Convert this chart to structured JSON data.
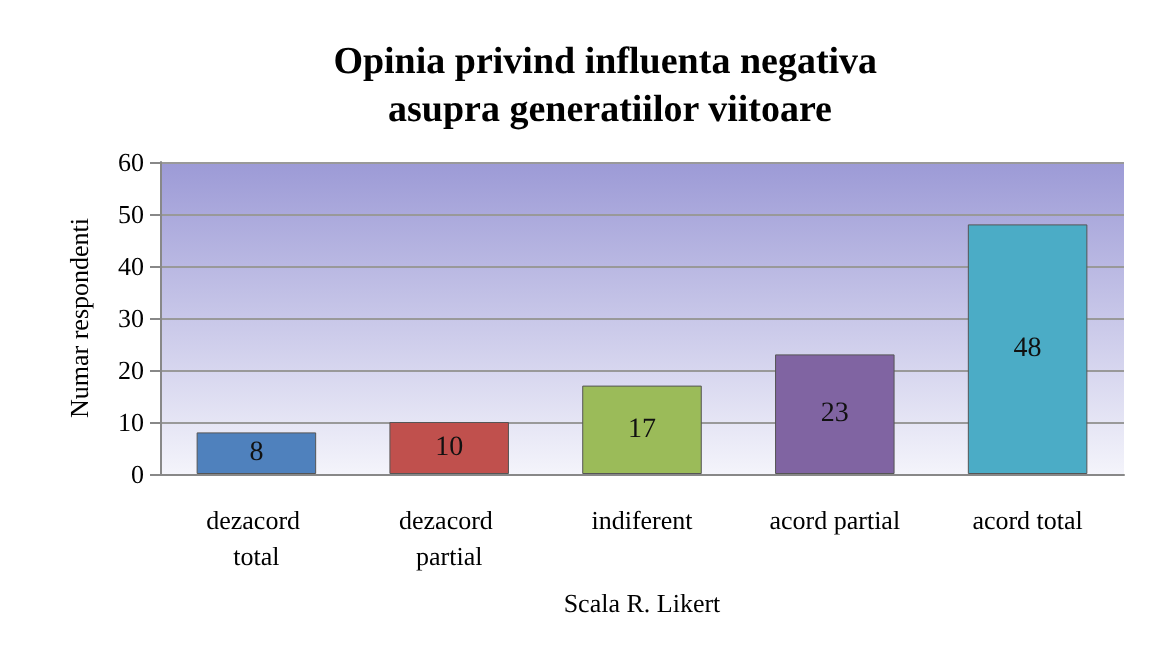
{
  "chart_data": {
    "type": "bar",
    "title": "Opinia privind influenta negativa asupra generatiilor viitoare",
    "xlabel": "Scala R. Likert",
    "ylabel": "Numar respondenti",
    "categories": [
      "dezacord total",
      "dezacord partial",
      "indiferent",
      "acord partial",
      "acord total"
    ],
    "values": [
      8,
      10,
      17,
      23,
      48
    ],
    "colors": [
      "#4f81bd",
      "#c0504d",
      "#9bbb59",
      "#8064a2",
      "#4bacc6"
    ],
    "ylim": [
      0,
      60
    ],
    "yticks": [
      0,
      10,
      20,
      30,
      40,
      50,
      60
    ],
    "grid": "y",
    "data_labels": true
  }
}
